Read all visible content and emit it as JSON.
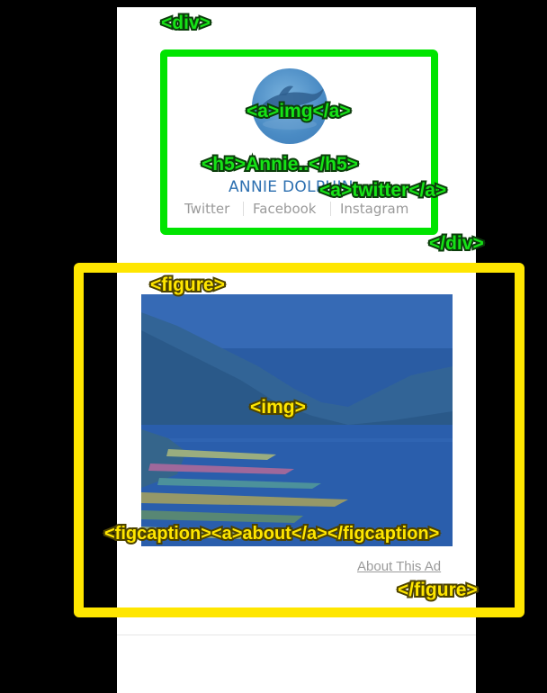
{
  "profile": {
    "name": "ANNIE DOLPHIN",
    "social_links": [
      "Twitter",
      "Facebook",
      "Instagram"
    ]
  },
  "figure": {
    "about_link": "About This Ad"
  },
  "annotations": {
    "div_open": "<div>",
    "a_img": "<a>img</a>",
    "h5": "<h5>Annie..</h5>",
    "a_twitter": "<a>twitter</a>",
    "div_close": "</div>",
    "figure_open": "<figure>",
    "img": "<img>",
    "figcaption": "<figcaption><a>about</a></figcaption>",
    "figure_close": "</figure>"
  },
  "colors": {
    "div_highlight": "#00e400",
    "figure_highlight": "#ffe600",
    "name_text": "#2c6fb0",
    "link_text": "#9a9a9a"
  }
}
